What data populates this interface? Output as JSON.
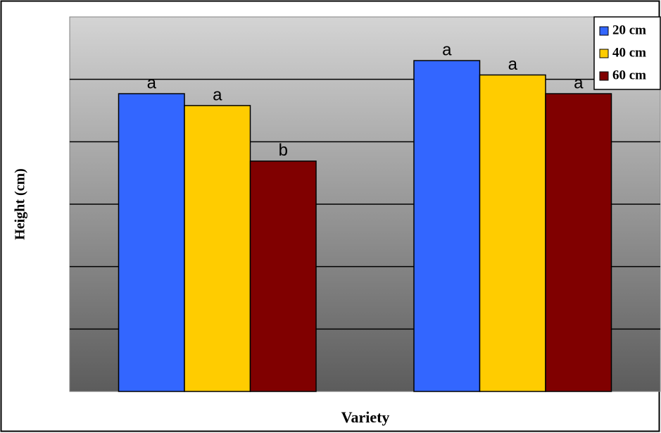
{
  "chart_data": {
    "type": "bar",
    "y_label": "Height (cm)",
    "x_label": "Variety",
    "categories": [
      null,
      null
    ],
    "series": [
      {
        "name": "20 cm",
        "color": "#3366ff",
        "values": [
          4.77,
          5.3
        ],
        "letters": [
          "a",
          "a"
        ]
      },
      {
        "name": "40 cm",
        "color": "#ffcc00",
        "values": [
          4.58,
          5.07
        ],
        "letters": [
          "a",
          "a"
        ]
      },
      {
        "name": "60 cm",
        "color": "#800000",
        "values": [
          3.69,
          4.77
        ],
        "letters": [
          "b",
          "a"
        ]
      }
    ],
    "ylim": [
      0,
      6
    ],
    "yticks": [
      1,
      2,
      3,
      4,
      5
    ],
    "grid": true,
    "legend": "top-right"
  }
}
